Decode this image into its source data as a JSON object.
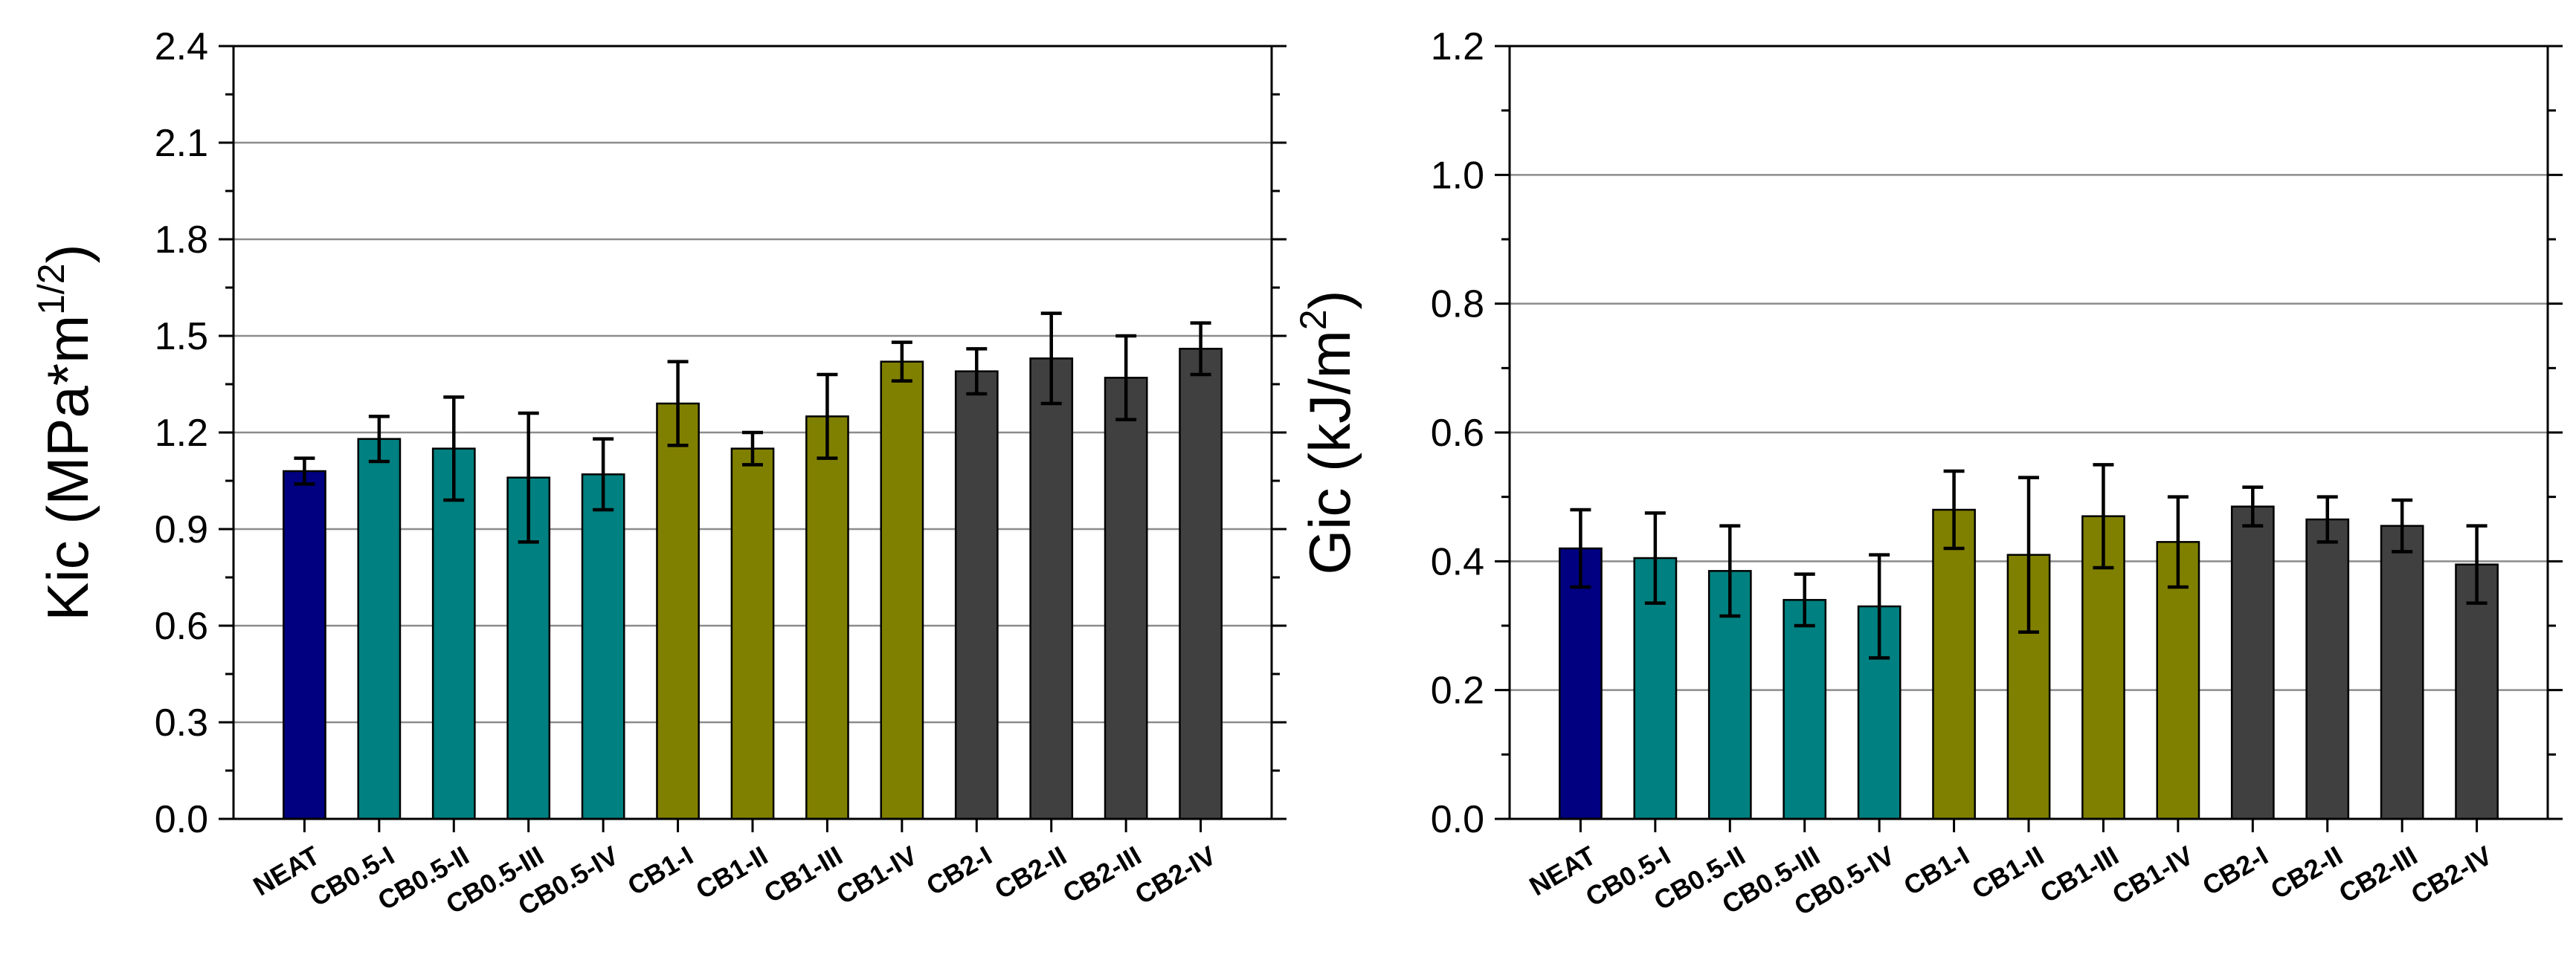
{
  "chart_data": [
    {
      "type": "bar",
      "title": "",
      "xlabel": "",
      "ylabel": {
        "base": "Kic (MPa*m",
        "sup": "1/2",
        "tail": ")"
      },
      "ylim": [
        0,
        2.4
      ],
      "yticks": [
        "0.0",
        "0.3",
        "0.6",
        "0.9",
        "1.2",
        "1.5",
        "1.8",
        "2.1",
        "2.4"
      ],
      "grid": true,
      "categories": [
        "NEAT",
        "CB0.5-I",
        "CB0.5-II",
        "CB0.5-III",
        "CB0.5-IV",
        "CB1-I",
        "CB1-II",
        "CB1-III",
        "CB1-IV",
        "CB2-I",
        "CB2-II",
        "CB2-III",
        "CB2-IV"
      ],
      "values": [
        1.08,
        1.18,
        1.15,
        1.06,
        1.07,
        1.29,
        1.15,
        1.25,
        1.42,
        1.39,
        1.43,
        1.37,
        1.46
      ],
      "errors": [
        0.04,
        0.07,
        0.16,
        0.2,
        0.11,
        0.13,
        0.05,
        0.13,
        0.06,
        0.07,
        0.14,
        0.13,
        0.08
      ],
      "groups": [
        "neat",
        "cb05",
        "cb05",
        "cb05",
        "cb05",
        "cb1",
        "cb1",
        "cb1",
        "cb1",
        "cb2",
        "cb2",
        "cb2",
        "cb2"
      ]
    },
    {
      "type": "bar",
      "title": "",
      "xlabel": "",
      "ylabel": {
        "base": "Gic (kJ/m",
        "sup": "2",
        "tail": ")"
      },
      "ylim": [
        0,
        1.2
      ],
      "yticks": [
        "0.0",
        "0.2",
        "0.4",
        "0.6",
        "0.8",
        "1.0",
        "1.2"
      ],
      "grid": true,
      "categories": [
        "NEAT",
        "CB0.5-I",
        "CB0.5-II",
        "CB0.5-III",
        "CB0.5-IV",
        "CB1-I",
        "CB1-II",
        "CB1-III",
        "CB1-IV",
        "CB2-I",
        "CB2-II",
        "CB2-III",
        "CB2-IV"
      ],
      "values": [
        0.42,
        0.405,
        0.385,
        0.34,
        0.33,
        0.48,
        0.41,
        0.47,
        0.43,
        0.485,
        0.465,
        0.455,
        0.395
      ],
      "errors": [
        0.06,
        0.07,
        0.07,
        0.04,
        0.08,
        0.06,
        0.12,
        0.08,
        0.07,
        0.03,
        0.035,
        0.04,
        0.06
      ],
      "groups": [
        "neat",
        "cb05",
        "cb05",
        "cb05",
        "cb05",
        "cb1",
        "cb1",
        "cb1",
        "cb1",
        "cb2",
        "cb2",
        "cb2",
        "cb2"
      ]
    }
  ],
  "colors": {
    "neat": "#000080",
    "cb05": "#008080",
    "cb1": "#808000",
    "cb2": "#404040",
    "grid": "#8c8c8c",
    "axis": "#000000"
  }
}
